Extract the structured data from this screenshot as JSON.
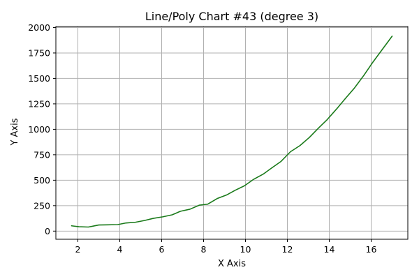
{
  "chart_data": {
    "type": "line",
    "title": "Line/Poly Chart #43 (degree 3)",
    "xlabel": "X Axis",
    "ylabel": "Y Axis",
    "xlim": [
      0.95,
      17.75
    ],
    "ylim": [
      -80,
      2010
    ],
    "x_ticks": [
      2,
      4,
      6,
      8,
      10,
      12,
      14,
      16
    ],
    "y_ticks": [
      0,
      250,
      500,
      750,
      1000,
      1250,
      1500,
      1750,
      2000
    ],
    "grid": true,
    "series": [
      {
        "color": "#1a7a1a",
        "x": [
          1.7,
          2.05,
          2.5,
          3.0,
          3.45,
          3.9,
          4.3,
          4.75,
          5.2,
          5.6,
          6.05,
          6.5,
          6.9,
          7.35,
          7.8,
          8.2,
          8.65,
          9.1,
          9.5,
          9.95,
          10.4,
          10.85,
          11.25,
          11.7,
          12.15,
          12.6,
          13.05,
          13.5,
          13.9,
          14.35,
          14.8,
          15.2,
          15.65,
          16.1,
          16.55,
          17.0
        ],
        "y": [
          52,
          43,
          40,
          60,
          62,
          64,
          80,
          87,
          105,
          125,
          140,
          160,
          195,
          215,
          255,
          265,
          320,
          355,
          400,
          445,
          510,
          560,
          620,
          685,
          780,
          840,
          920,
          1015,
          1095,
          1200,
          1310,
          1405,
          1530,
          1665,
          1790,
          1915
        ]
      }
    ]
  }
}
